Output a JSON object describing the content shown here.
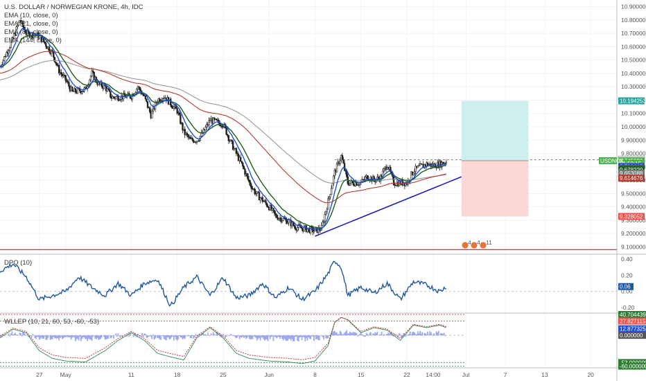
{
  "colors": {
    "background": "#ffffff",
    "grid": "#f0f3f7",
    "axis_text": "#555555",
    "candle": "#222222",
    "ema10": "#1e4fd8",
    "ema21": "#1b5e20",
    "ema89": "#b03a2e",
    "ema144": "#999999",
    "trendline": "#1c1cc4",
    "long_target": "#cfeeee",
    "long_stop": "#fbd7d7",
    "dpo_line": "#1f57a3",
    "osc_red": "#d03030",
    "osc_green": "#2e8b57",
    "osc_histogram": "#9fa9ee"
  },
  "legend": {
    "symbol": "U.S. DOLLAR / NORWEGIAN KRONE, 4h, IDC",
    "ema_lines": [
      "EMA (10, close, 0)",
      "EMA (21, close, 0)",
      "EMA (89, close, 0)",
      "EMA (144, close, 0)"
    ]
  },
  "price_axis": {
    "ticks": [
      "10.900000",
      "10.800000",
      "10.700000",
      "10.600000",
      "10.500000",
      "10.400000",
      "10.300000",
      "10.200000",
      "10.100000",
      "10.000000",
      "9.900000",
      "9.800000",
      "9.700000",
      "9.600000",
      "9.500000",
      "9.400000",
      "9.300000",
      "9.200000",
      "9.100000"
    ],
    "tags": [
      {
        "text": "10.194253",
        "bg": "#26a69a",
        "fg": "#ffffff",
        "value": 10.194253
      },
      {
        "text": "9.752214",
        "bg": "#ffffff",
        "fg": "#222222",
        "value": 9.752214
      },
      {
        "text": "9.745990",
        "bg": "#4caf50",
        "fg": "#ffffff",
        "value": 9.74599
      },
      {
        "text": "01:50:15",
        "bg": "#4caf50",
        "fg": "#ffffff",
        "value": 9.726
      },
      {
        "text": "9.701443",
        "bg": "#1e4fd8",
        "fg": "#ffffff",
        "value": 9.701443
      },
      {
        "text": "9.688531",
        "bg": "#555555",
        "fg": "#ffffff",
        "value": 9.688531
      },
      {
        "text": "9.678220",
        "bg": "#1b5e20",
        "fg": "#ffffff",
        "value": 9.67822
      },
      {
        "text": "9.653088",
        "bg": "#777777",
        "fg": "#ffffff",
        "value": 9.653088
      },
      {
        "text": "9.614676",
        "bg": "#b03a2e",
        "fg": "#ffffff",
        "value": 9.614676
      },
      {
        "text": "9.328052",
        "bg": "#ef5350",
        "fg": "#ffffff",
        "value": 9.328052
      }
    ],
    "symbol_tag": "USDNOK"
  },
  "time_axis": {
    "labels": [
      "27",
      "May",
      "11",
      "18",
      "25",
      "Jun",
      "8",
      "15",
      "22",
      "14:00",
      "Jul",
      "7",
      "13",
      "20"
    ]
  },
  "events": [
    "4",
    "4",
    "11"
  ],
  "dpo": {
    "title": "DPO (10)",
    "ticks": [
      "0.40",
      "0.20",
      "0.00",
      "-0.20"
    ],
    "last_value": "0.06"
  },
  "oscillator": {
    "title": "WLLEP (10, 21, 60, 53, -60, -53)",
    "ticks": [
      "40.704439",
      "27.827115",
      "12.877325",
      "0.000000",
      "-53.000000",
      "-60.000000"
    ]
  },
  "chart_data": [
    {
      "type": "candlestick",
      "title": "U.S. DOLLAR / NORWEGIAN KRONE, 4h, IDC",
      "ylim": [
        9.05,
        10.95
      ],
      "x_range": [
        "Apr 21",
        "Jul 24"
      ],
      "series": [
        {
          "name": "EMA (10, close, 0)"
        },
        {
          "name": "EMA (21, close, 0)"
        },
        {
          "name": "EMA (89, close, 0)"
        },
        {
          "name": "EMA (144, close, 0)"
        }
      ],
      "last_price": 9.74599,
      "close_path": [
        [
          "Apr 21",
          10.45
        ],
        [
          "Apr 23",
          10.66
        ],
        [
          "Apr 24",
          10.8
        ],
        [
          "Apr 25",
          10.7
        ],
        [
          "Apr 27",
          10.68
        ],
        [
          "Apr 29",
          10.55
        ],
        [
          "Apr 30",
          10.42
        ],
        [
          "May 1",
          10.35
        ],
        [
          "May 2",
          10.26
        ],
        [
          "May 4",
          10.28
        ],
        [
          "May 5",
          10.4
        ],
        [
          "May 6",
          10.32
        ],
        [
          "May 7",
          10.3
        ],
        [
          "May 8",
          10.22
        ],
        [
          "May 11",
          10.23
        ],
        [
          "May 12",
          10.3
        ],
        [
          "May 13",
          10.22
        ],
        [
          "May 14",
          10.09
        ],
        [
          "May 15",
          10.2
        ],
        [
          "May 16",
          10.23
        ],
        [
          "May 18",
          10.12
        ],
        [
          "May 19",
          9.96
        ],
        [
          "May 20",
          9.9
        ],
        [
          "May 21",
          9.9
        ],
        [
          "May 22",
          9.96
        ],
        [
          "May 23",
          10.05
        ],
        [
          "May 25",
          10.02
        ],
        [
          "May 26",
          9.9
        ],
        [
          "May 27",
          9.8
        ],
        [
          "May 28",
          9.7
        ],
        [
          "May 29",
          9.58
        ],
        [
          "May 30",
          9.5
        ],
        [
          "Jun 1",
          9.4
        ],
        [
          "Jun 2",
          9.33
        ],
        [
          "Jun 4",
          9.29
        ],
        [
          "Jun 5",
          9.25
        ],
        [
          "Jun 6",
          9.24
        ],
        [
          "Jun 8",
          9.22
        ],
        [
          "Jun 9",
          9.24
        ],
        [
          "Jun 10",
          9.44
        ],
        [
          "Jun 11",
          9.66
        ],
        [
          "Jun 12",
          9.78
        ],
        [
          "Jun 13",
          9.58
        ],
        [
          "Jun 15",
          9.58
        ],
        [
          "Jun 16",
          9.63
        ],
        [
          "Jun 17",
          9.6
        ],
        [
          "Jun 18",
          9.62
        ],
        [
          "Jun 19",
          9.72
        ],
        [
          "Jun 20",
          9.58
        ],
        [
          "Jun 22",
          9.58
        ],
        [
          "Jun 23",
          9.67
        ],
        [
          "Jun 24",
          9.7
        ],
        [
          "Jun 25",
          9.72
        ],
        [
          "Jun 26",
          9.71
        ],
        [
          "Jun 27",
          9.72
        ],
        [
          "Jun 28",
          9.74
        ]
      ]
    },
    {
      "type": "line",
      "title": "DPO (10)",
      "ylim": [
        -0.25,
        0.45
      ],
      "series": [
        {
          "name": "DPO (10)",
          "x": [
            "Apr 21",
            "Apr 23",
            "Apr 25",
            "Apr 27",
            "Apr 29",
            "May 1",
            "May 3",
            "May 5",
            "May 7",
            "May 9",
            "May 11",
            "May 13",
            "May 15",
            "May 17",
            "May 19",
            "May 21",
            "May 23",
            "May 25",
            "May 27",
            "May 29",
            "May 31",
            "Jun 2",
            "Jun 4",
            "Jun 6",
            "Jun 8",
            "Jun 10",
            "Jun 11",
            "Jun 12",
            "Jun 13",
            "Jun 15",
            "Jun 17",
            "Jun 19",
            "Jun 21",
            "Jun 23",
            "Jun 25",
            "Jun 27",
            "Jun 28"
          ],
          "values": [
            0.25,
            0.34,
            0.18,
            -0.1,
            -0.05,
            0.0,
            0.18,
            0.05,
            -0.05,
            0.1,
            -0.05,
            0.1,
            0.15,
            -0.18,
            0.05,
            0.18,
            -0.05,
            0.17,
            -0.08,
            -0.05,
            0.1,
            -0.08,
            0.05,
            -0.1,
            0.0,
            0.22,
            0.38,
            0.3,
            -0.05,
            0.05,
            -0.02,
            0.1,
            -0.1,
            0.12,
            0.08,
            0.0,
            0.06
          ]
        }
      ]
    },
    {
      "type": "line",
      "title": "WLLEP (10, 21, 60, 53, -60, -53)",
      "ylim": [
        -62,
        42
      ],
      "reference_levels": [
        40.704439,
        27.827115,
        0.0,
        -53.0,
        -60.0
      ],
      "series": [
        {
          "name": "WLLEP",
          "x": [
            "Apr 21",
            "Apr 23",
            "Apr 25",
            "Apr 27",
            "Apr 29",
            "May 1",
            "May 4",
            "May 7",
            "May 9",
            "May 11",
            "May 13",
            "May 15",
            "May 17",
            "May 19",
            "May 21",
            "May 23",
            "May 25",
            "May 27",
            "May 29",
            "Jun 1",
            "Jun 4",
            "Jun 6",
            "Jun 8",
            "Jun 10",
            "Jun 11",
            "Jun 12",
            "Jun 13",
            "Jun 15",
            "Jun 17",
            "Jun 19",
            "Jun 21",
            "Jun 23",
            "Jun 25",
            "Jun 27",
            "Jun 28"
          ],
          "values": [
            -5,
            12,
            5,
            -30,
            -45,
            -50,
            -52,
            -30,
            -10,
            5,
            -10,
            -35,
            -42,
            -48,
            -5,
            15,
            -5,
            -35,
            -45,
            -50,
            -52,
            -55,
            -50,
            -20,
            25,
            35,
            30,
            5,
            15,
            10,
            -10,
            20,
            15,
            20,
            15
          ]
        }
      ]
    }
  ]
}
